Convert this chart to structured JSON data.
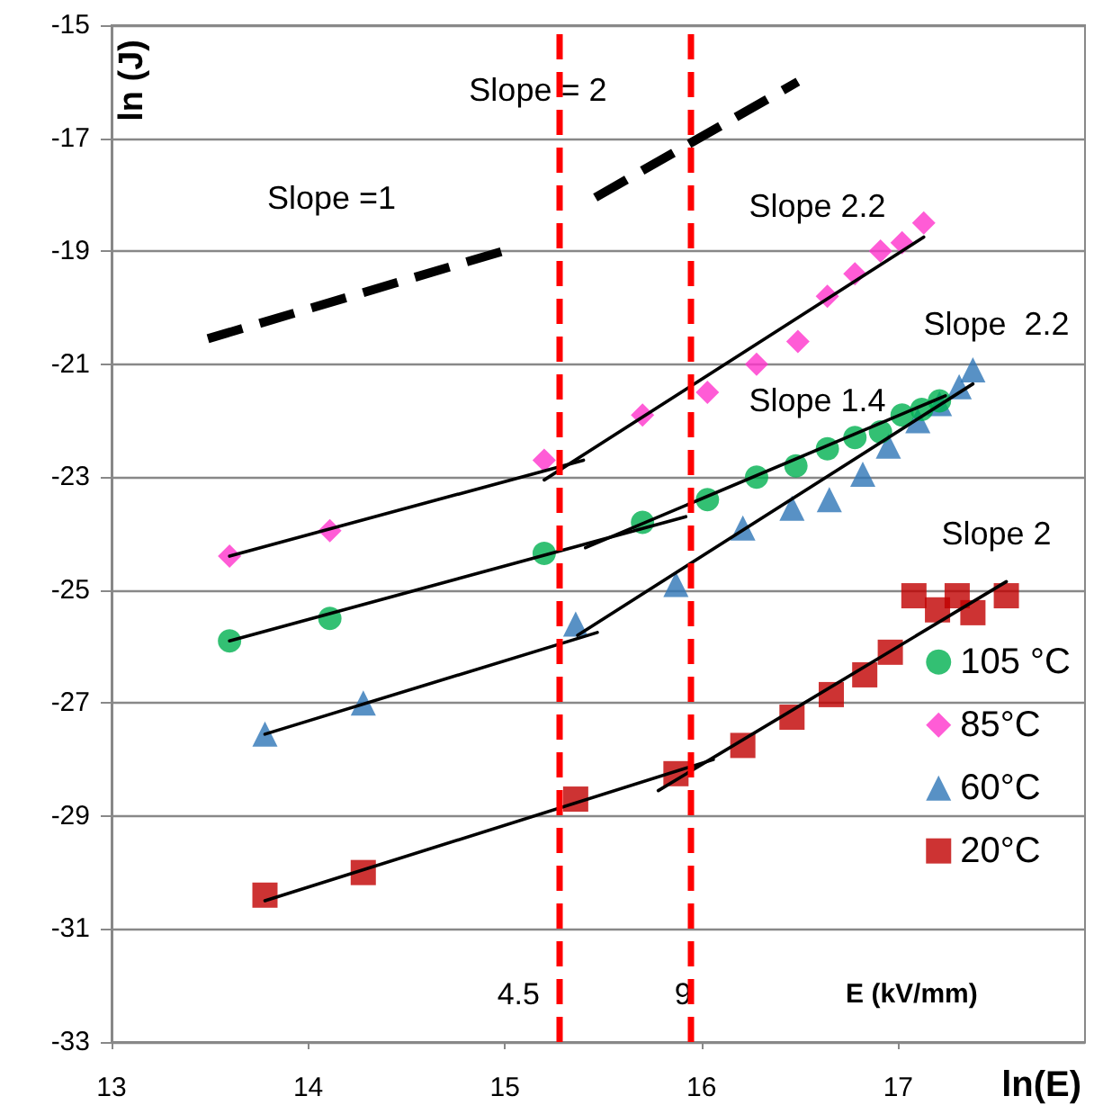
{
  "chart_data": {
    "type": "scatter",
    "xlabel": "ln(E)",
    "ylabel": "ln (J)",
    "xlim": [
      13,
      17.95
    ],
    "xticks": [
      13,
      14,
      15,
      16,
      17
    ],
    "ylim": [
      -33,
      -15
    ],
    "yticks": [
      -33,
      -31,
      -29,
      -27,
      -25,
      -23,
      -21,
      -19,
      -17,
      -15
    ],
    "grid": "y",
    "legend": "right",
    "series": [
      {
        "name": "105 °C",
        "type": "scatter",
        "marker": "circle",
        "color": "#00b050",
        "x": [
          13.6,
          14.11,
          15.2,
          15.7,
          16.03,
          16.28,
          16.48,
          16.64,
          16.78,
          16.91,
          17.02,
          17.12,
          17.21
        ],
        "values": [
          -25.9,
          -25.5,
          -24.35,
          -23.8,
          -23.4,
          -23.0,
          -22.8,
          -22.5,
          -22.3,
          -22.2,
          -21.9,
          -21.8,
          -21.65
        ]
      },
      {
        "name": "85°C",
        "type": "scatter",
        "marker": "diamond",
        "color": "#ff33cc",
        "x": [
          13.6,
          14.11,
          15.2,
          15.7,
          16.03,
          16.28,
          16.49,
          16.64,
          16.78,
          16.91,
          17.02,
          17.13
        ],
        "values": [
          -24.4,
          -23.95,
          -22.7,
          -21.9,
          -21.5,
          -21.0,
          -20.6,
          -19.8,
          -19.4,
          -19.0,
          -18.85,
          -18.5
        ]
      },
      {
        "name": "60°C",
        "type": "scatter",
        "marker": "triangle",
        "color": "#2e75b6",
        "x": [
          13.78,
          14.28,
          15.36,
          15.87,
          16.21,
          16.46,
          16.65,
          16.82,
          16.95,
          17.1,
          17.21,
          17.31,
          17.38
        ],
        "values": [
          -27.55,
          -27.0,
          -25.6,
          -24.9,
          -23.9,
          -23.55,
          -23.4,
          -22.95,
          -22.45,
          -22.0,
          -21.7,
          -21.4,
          -21.1
        ]
      },
      {
        "name": "20°C",
        "type": "scatter",
        "marker": "square",
        "color": "#c00000",
        "x": [
          13.78,
          14.28,
          15.36,
          15.87,
          16.21,
          16.46,
          16.66,
          16.83,
          16.96,
          17.08,
          17.2,
          17.3,
          17.38,
          17.55
        ],
        "values": [
          -30.4,
          -30.0,
          -28.7,
          -28.25,
          -27.75,
          -27.25,
          -26.85,
          -26.5,
          -26.1,
          -25.1,
          -25.35,
          -25.1,
          -25.4,
          -25.1
        ]
      },
      {
        "type": "line",
        "marker": "none",
        "line_style": "solid",
        "color": "#000000",
        "x": [
          13.6,
          15.4
        ],
        "values": [
          -24.4,
          -22.7
        ]
      },
      {
        "type": "line",
        "marker": "none",
        "line_style": "solid",
        "color": "#000000",
        "x": [
          15.2,
          17.13
        ],
        "values": [
          -23.05,
          -18.75
        ]
      },
      {
        "type": "line",
        "marker": "none",
        "line_style": "solid",
        "color": "#000000",
        "x": [
          13.6,
          15.92
        ],
        "values": [
          -25.9,
          -23.7
        ]
      },
      {
        "type": "line",
        "marker": "none",
        "line_style": "solid",
        "color": "#000000",
        "x": [
          15.41,
          17.24
        ],
        "values": [
          -24.25,
          -21.56
        ]
      },
      {
        "type": "line",
        "marker": "none",
        "line_style": "solid",
        "color": "#000000",
        "x": [
          13.78,
          15.47
        ],
        "values": [
          -27.55,
          -25.75
        ]
      },
      {
        "type": "line",
        "marker": "none",
        "line_style": "solid",
        "color": "#000000",
        "x": [
          15.37,
          17.38
        ],
        "values": [
          -25.8,
          -21.35
        ]
      },
      {
        "type": "line",
        "marker": "none",
        "line_style": "solid",
        "color": "#000000",
        "x": [
          13.78,
          16.06
        ],
        "values": [
          -30.5,
          -28.0
        ]
      },
      {
        "type": "line",
        "marker": "none",
        "line_style": "solid",
        "color": "#000000",
        "x": [
          15.78,
          17.55
        ],
        "values": [
          -28.55,
          -24.85
        ]
      },
      {
        "type": "line",
        "marker": "none",
        "line_style": "dashed",
        "color": "#000000",
        "x": [
          13.49,
          14.99
        ],
        "values": [
          -20.55,
          -19.0
        ]
      },
      {
        "type": "line",
        "marker": "none",
        "line_style": "dashed",
        "color": "#000000",
        "x": [
          15.46,
          16.49
        ],
        "values": [
          -18.05,
          -16.0
        ]
      }
    ],
    "ref_lines": [
      {
        "axis": "x",
        "value": 15.28,
        "color": "#ff0000",
        "line_style": "dashed"
      },
      {
        "axis": "x",
        "value": 15.94,
        "color": "#ff0000",
        "line_style": "dashed"
      }
    ],
    "annotations": [
      "Slope = 2",
      "Slope =1",
      "Slope 2.2",
      "Slope  2.2",
      "Slope 1.4",
      "Slope 2",
      "E (kV/mm)",
      "4.5",
      "9"
    ]
  }
}
